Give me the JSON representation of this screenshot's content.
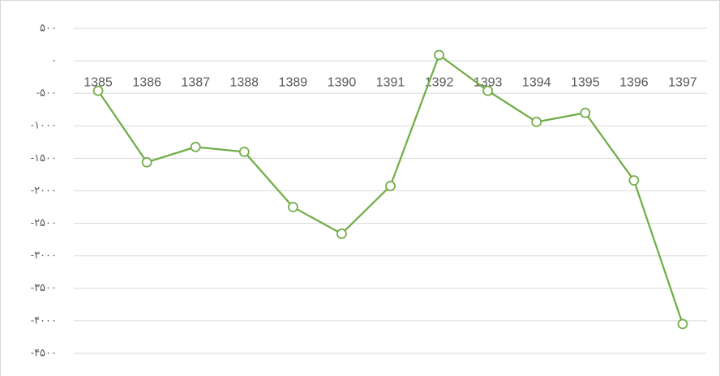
{
  "chart_data": {
    "type": "line",
    "categories": [
      "1385",
      "1386",
      "1387",
      "1388",
      "1389",
      "1390",
      "1391",
      "1392",
      "1393",
      "1394",
      "1395",
      "1396",
      "1397"
    ],
    "values": [
      -460,
      -1560,
      -1325,
      -1400,
      -2250,
      -2660,
      -1925,
      90,
      -460,
      -940,
      -800,
      -1840,
      -4050
    ],
    "color": "#70ad47",
    "ylim": [
      -4500,
      500
    ],
    "yticks": [
      {
        "value": 500,
        "label": "۵۰۰"
      },
      {
        "value": 0,
        "label": "۰"
      },
      {
        "value": -500,
        "label": "-۵۰۰"
      },
      {
        "value": -1000,
        "label": "-۱۰۰۰"
      },
      {
        "value": -1500,
        "label": "-۱۵۰۰"
      },
      {
        "value": -2000,
        "label": "-۲۰۰۰"
      },
      {
        "value": -2500,
        "label": "-۲۵۰۰"
      },
      {
        "value": -3000,
        "label": "-۳۰۰۰"
      },
      {
        "value": -3500,
        "label": "-۳۵۰۰"
      },
      {
        "value": -4000,
        "label": "-۴۰۰۰"
      },
      {
        "value": -4500,
        "label": "-۴۵۰۰"
      }
    ],
    "grid": true
  }
}
